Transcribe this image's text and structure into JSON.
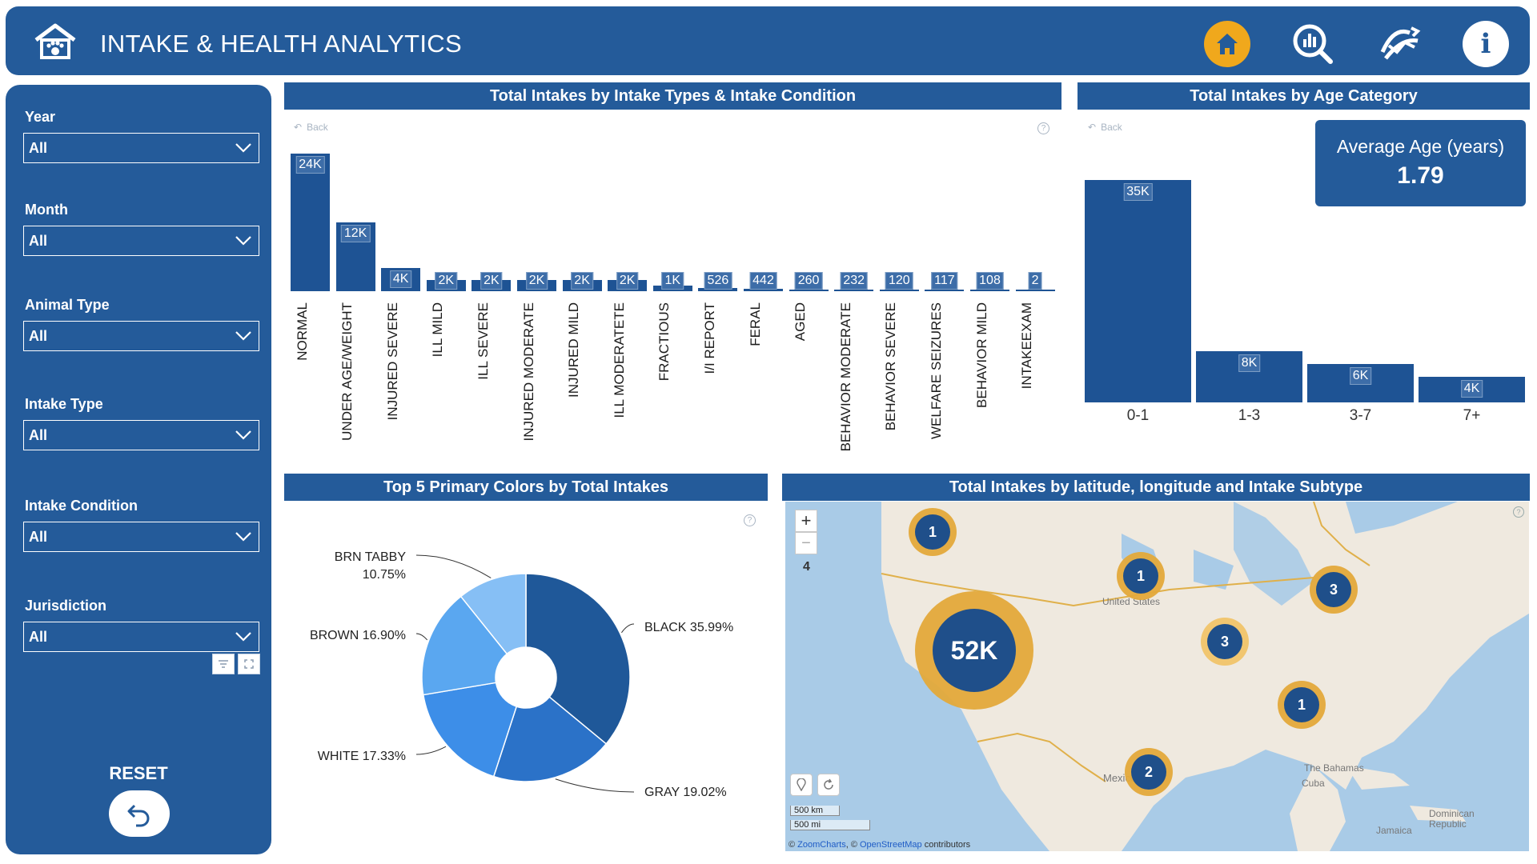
{
  "header": {
    "title": "INTAKE & HEALTH ANALYTICS",
    "colors": {
      "primary": "#245b9a",
      "accent": "#f0a81c"
    },
    "nav_icons": [
      "home-icon",
      "analytics-icon",
      "trend-icon",
      "info-icon"
    ],
    "info_glyph": "i"
  },
  "filters": [
    {
      "label": "Year",
      "value": "All"
    },
    {
      "label": "Month",
      "value": "All"
    },
    {
      "label": "Animal Type",
      "value": "All"
    },
    {
      "label": "Intake Type",
      "value": "All"
    },
    {
      "label": "Intake Condition",
      "value": "All"
    },
    {
      "label": "Jurisdiction",
      "value": "All"
    }
  ],
  "reset": {
    "label": "RESET"
  },
  "panels": {
    "condition_title": "Total Intakes by Intake Types & Intake Condition",
    "age_title": "Total Intakes by Age Category",
    "colors_title": "Top 5 Primary Colors by Total Intakes",
    "map_title": "Total Intakes by latitude, longitude and Intake Subtype",
    "back_label": "Back",
    "help_glyph": "?"
  },
  "avg_age": {
    "label": "Average Age (years)",
    "value": "1.79"
  },
  "chart_data": [
    {
      "type": "bar",
      "title": "Total Intakes by Intake Types & Intake Condition",
      "categories": [
        "NORMAL",
        "UNDER AGE/WEIGHT",
        "INJURED SEVERE",
        "ILL MILD",
        "ILL SEVERE",
        "INJURED MODERATE",
        "INJURED MILD",
        "ILL MODERATETE",
        "FRACTIOUS",
        "I/I REPORT",
        "FERAL",
        "AGED",
        "BEHAVIOR MODERATE",
        "BEHAVIOR SEVERE",
        "WELFARE SEIZURES",
        "BEHAVIOR MILD",
        "INTAKEEXAM"
      ],
      "values": [
        24000,
        12000,
        4000,
        2000,
        2000,
        2000,
        2000,
        2000,
        1000,
        526,
        442,
        260,
        232,
        120,
        117,
        108,
        2
      ],
      "data_labels": [
        "24K",
        "12K",
        "4K",
        "2K",
        "2K",
        "2K",
        "2K",
        "2K",
        "1K",
        "526",
        "442",
        "260",
        "232",
        "120",
        "117",
        "108",
        "2"
      ],
      "color": "#1e5394"
    },
    {
      "type": "bar",
      "title": "Total Intakes by Age Category",
      "categories": [
        "0-1",
        "1-3",
        "3-7",
        "7+"
      ],
      "values": [
        35000,
        8000,
        6000,
        4000
      ],
      "data_labels": [
        "35K",
        "8K",
        "6K",
        "4K"
      ],
      "color": "#1e5394"
    },
    {
      "type": "pie",
      "title": "Top 5 Primary Colors by Total Intakes",
      "slices": [
        {
          "name": "BLACK",
          "pct": "35.99%",
          "value": 35.99,
          "color": "#1f5899"
        },
        {
          "name": "GRAY",
          "pct": "19.02%",
          "value": 19.02,
          "color": "#2b72c8"
        },
        {
          "name": "WHITE",
          "pct": "17.33%",
          "value": 17.33,
          "color": "#3d8ee8"
        },
        {
          "name": "BROWN",
          "pct": "16.90%",
          "value": 16.9,
          "color": "#5aa7f0"
        },
        {
          "name": "BRN TABBY",
          "pct": "10.75%",
          "value": 10.75,
          "color": "#86bff5"
        }
      ]
    }
  ],
  "map": {
    "zoom_level": "4",
    "clusters": [
      "1",
      "1",
      "3",
      "52K",
      "3",
      "1",
      "2"
    ],
    "place_labels": [
      "United States",
      "Mexico",
      "The Bahamas",
      "Cuba",
      "Dominican Republic",
      "Jamaica"
    ],
    "scale_km": "500 km",
    "scale_mi": "500 mi",
    "attribution": {
      "prefix": "© ",
      "zoomcharts": "ZoomCharts",
      "sep": ", © ",
      "osm": "OpenStreetMap",
      "suffix": " contributors"
    },
    "zoom_in": "+",
    "zoom_out": "−"
  }
}
